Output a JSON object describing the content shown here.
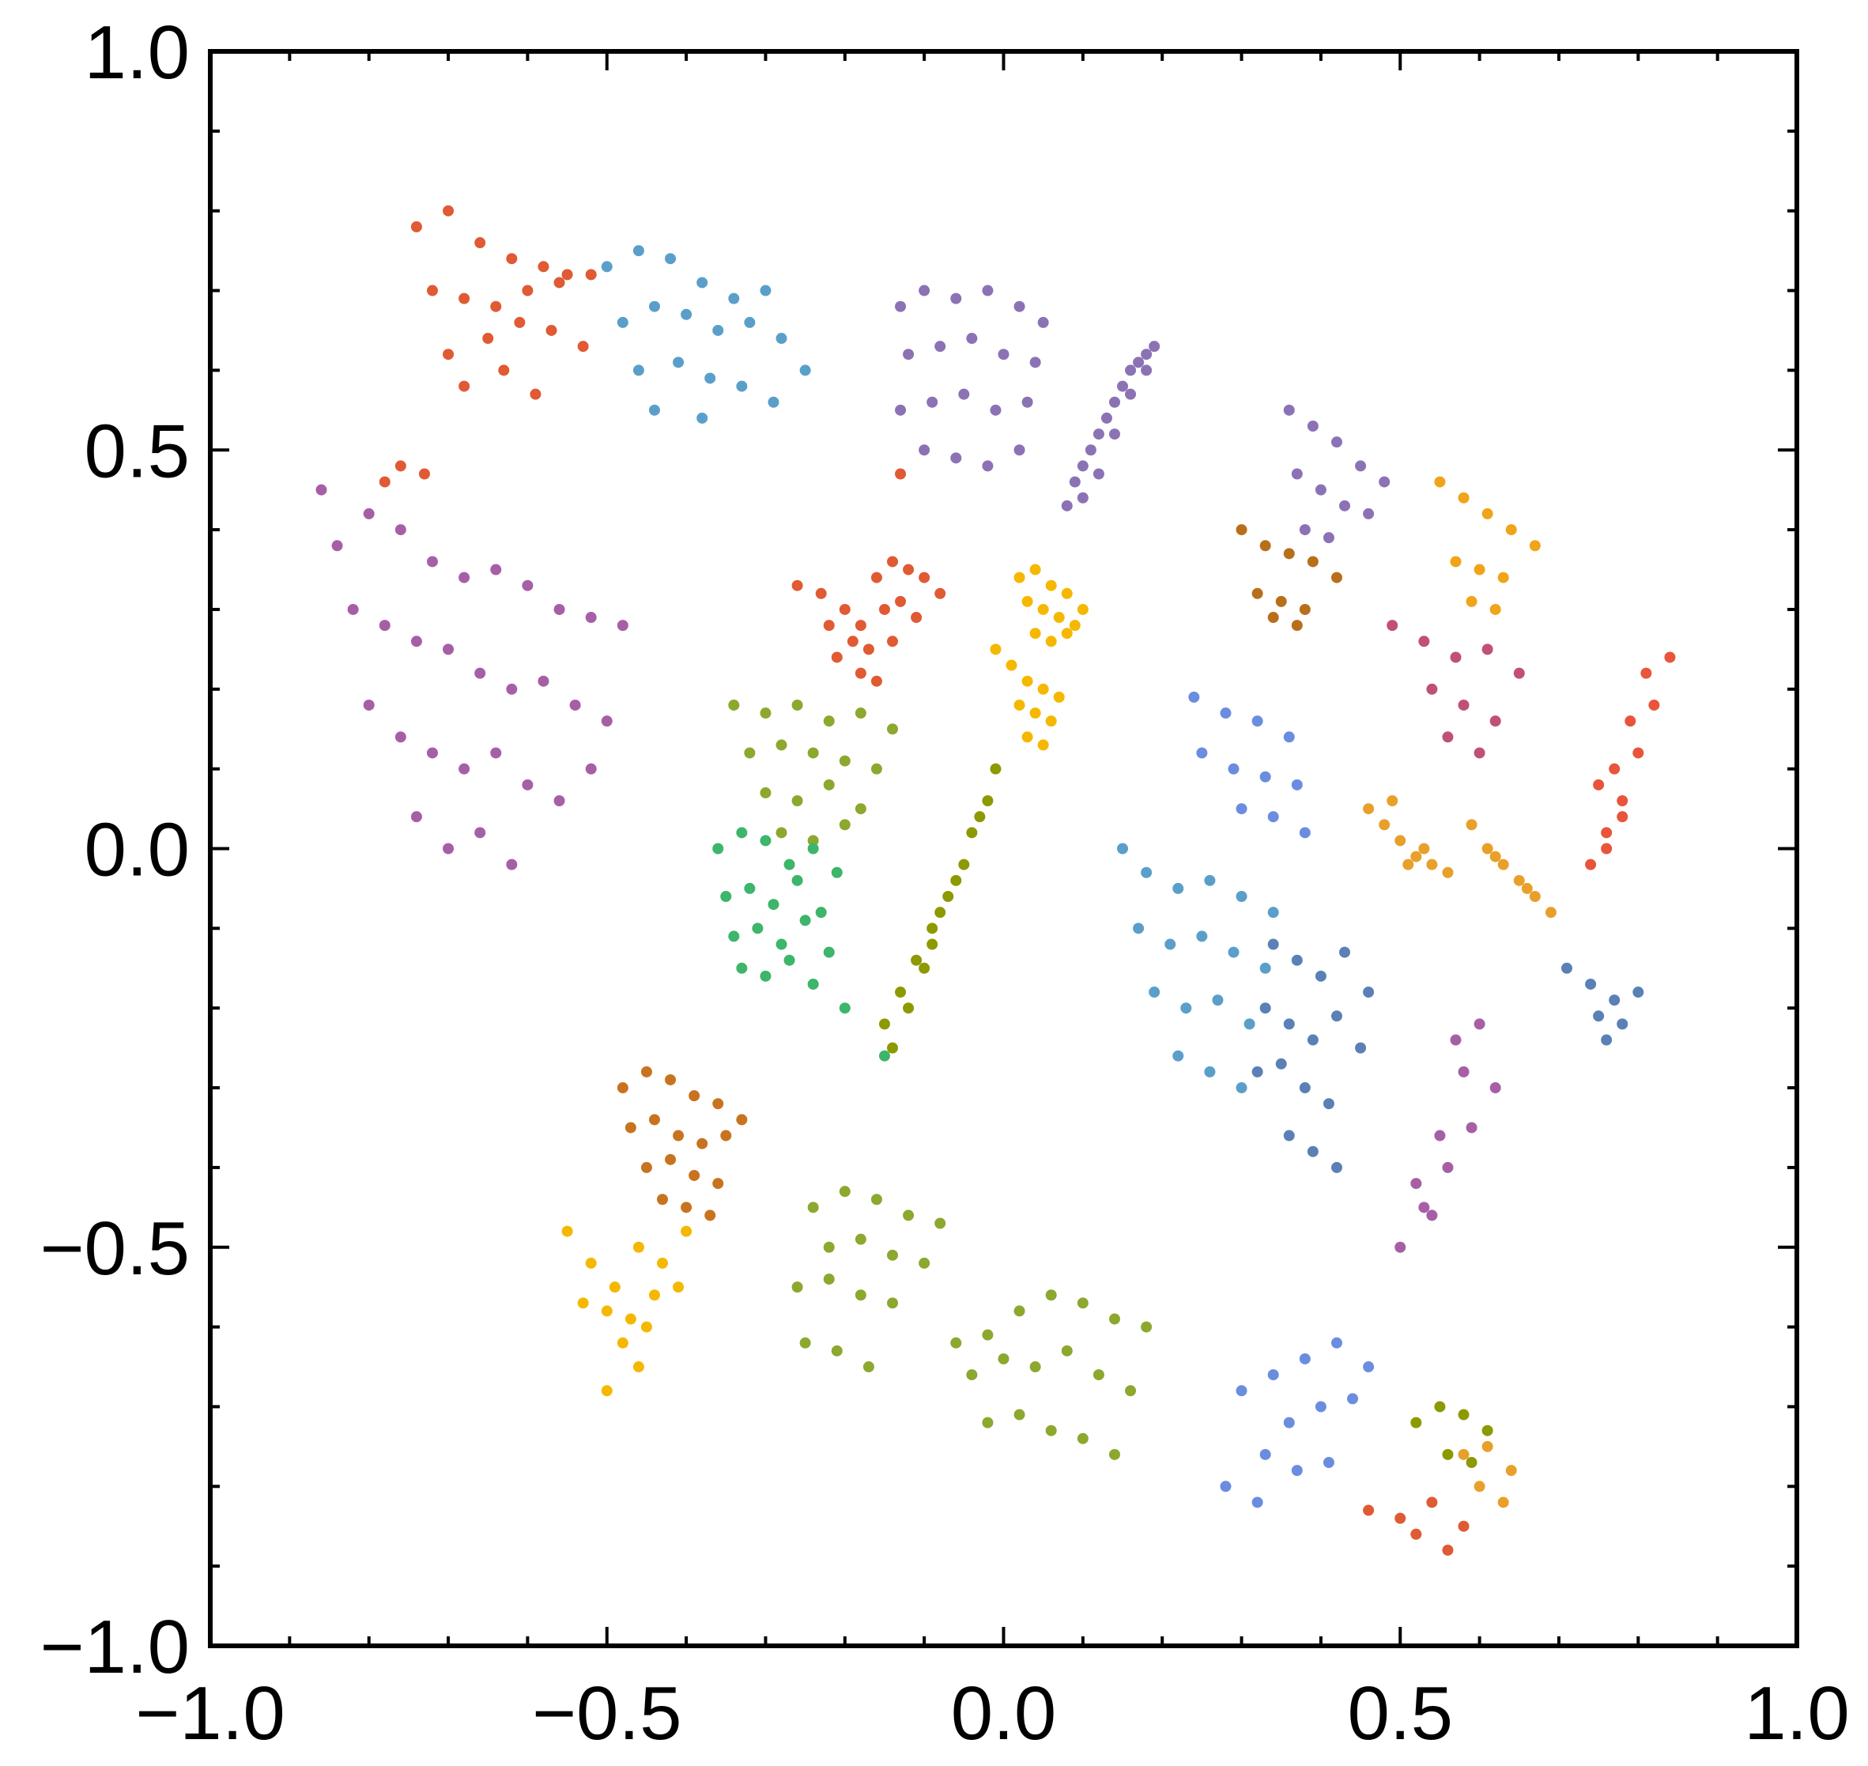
{
  "chart_data": {
    "type": "scatter",
    "title": "",
    "xlabel": "",
    "ylabel": "",
    "xlim": [
      -1.0,
      1.0
    ],
    "ylim": [
      -1.0,
      1.0
    ],
    "grid": false,
    "legend": "none",
    "x_ticks": [
      "-1.0",
      "-0.5",
      "0.0",
      "0.5",
      "1.0"
    ],
    "y_ticks": [
      "-1.0",
      "-0.5",
      "0.0",
      "0.5",
      "1.0"
    ],
    "x_tick_values": [
      -1.0,
      -0.5,
      0.0,
      0.5,
      1.0
    ],
    "y_tick_values": [
      -1.0,
      -0.5,
      0.0,
      0.5,
      1.0
    ],
    "series": [
      {
        "color": "#e05a33",
        "x": [
          -0.74,
          -0.7,
          -0.66,
          -0.62,
          -0.58,
          -0.55,
          -0.72,
          -0.68,
          -0.64,
          -0.6,
          -0.56,
          -0.52,
          -0.7,
          -0.65,
          -0.61,
          -0.57,
          -0.53,
          -0.68,
          -0.63,
          -0.59
        ],
        "y": [
          0.78,
          0.8,
          0.76,
          0.74,
          0.73,
          0.72,
          0.7,
          0.69,
          0.68,
          0.7,
          0.71,
          0.72,
          0.62,
          0.64,
          0.66,
          0.65,
          0.63,
          0.58,
          0.6,
          0.57
        ]
      },
      {
        "color": "#5a9fca",
        "x": [
          -0.5,
          -0.46,
          -0.42,
          -0.38,
          -0.34,
          -0.3,
          -0.48,
          -0.44,
          -0.4,
          -0.36,
          -0.32,
          -0.28,
          -0.25,
          -0.46,
          -0.41,
          -0.37,
          -0.33,
          -0.29,
          -0.44,
          -0.38
        ],
        "y": [
          0.73,
          0.75,
          0.74,
          0.71,
          0.69,
          0.7,
          0.66,
          0.68,
          0.67,
          0.65,
          0.66,
          0.64,
          0.6,
          0.6,
          0.61,
          0.59,
          0.58,
          0.56,
          0.55,
          0.54
        ]
      },
      {
        "color": "#8b72b5",
        "x": [
          -0.13,
          -0.1,
          -0.06,
          -0.02,
          0.02,
          0.05,
          -0.12,
          -0.08,
          -0.04,
          0.0,
          0.04,
          -0.13,
          -0.09,
          -0.05,
          -0.01,
          0.03,
          -0.1,
          -0.06,
          -0.02,
          0.02
        ],
        "y": [
          0.68,
          0.7,
          0.69,
          0.7,
          0.68,
          0.66,
          0.62,
          0.63,
          0.64,
          0.62,
          0.61,
          0.55,
          0.56,
          0.57,
          0.55,
          0.56,
          0.5,
          0.49,
          0.48,
          0.5
        ]
      },
      {
        "color": "#8b72b5",
        "x": [
          0.08,
          0.09,
          0.1,
          0.11,
          0.12,
          0.13,
          0.14,
          0.15,
          0.16,
          0.17,
          0.18,
          0.19,
          0.1,
          0.12,
          0.14,
          0.16,
          0.18
        ],
        "y": [
          0.43,
          0.46,
          0.48,
          0.5,
          0.52,
          0.54,
          0.56,
          0.58,
          0.6,
          0.61,
          0.62,
          0.63,
          0.44,
          0.47,
          0.52,
          0.57,
          0.6
        ]
      },
      {
        "color": "#a65fa6",
        "x": [
          -0.86,
          -0.84,
          -0.8,
          -0.76,
          -0.72,
          -0.68,
          -0.64,
          -0.6,
          -0.56,
          -0.52,
          -0.48,
          -0.82,
          -0.78,
          -0.74,
          -0.7,
          -0.66,
          -0.62,
          -0.58,
          -0.54,
          -0.5,
          -0.8,
          -0.76,
          -0.72,
          -0.68,
          -0.64,
          -0.6,
          -0.56,
          -0.52,
          -0.74,
          -0.7,
          -0.66,
          -0.62
        ],
        "y": [
          0.45,
          0.38,
          0.42,
          0.4,
          0.36,
          0.34,
          0.35,
          0.33,
          0.3,
          0.29,
          0.28,
          0.3,
          0.28,
          0.26,
          0.25,
          0.22,
          0.2,
          0.21,
          0.18,
          0.16,
          0.18,
          0.14,
          0.12,
          0.1,
          0.12,
          0.08,
          0.06,
          0.1,
          0.04,
          0.0,
          0.02,
          -0.02
        ]
      },
      {
        "color": "#e05a33",
        "x": [
          -0.26,
          -0.23,
          -0.2,
          -0.18,
          -0.16,
          -0.14,
          -0.12,
          -0.1,
          -0.08,
          -0.22,
          -0.19,
          -0.17,
          -0.15,
          -0.13,
          -0.11,
          -0.21,
          -0.18,
          -0.16,
          -0.14
        ],
        "y": [
          0.33,
          0.32,
          0.3,
          0.28,
          0.34,
          0.36,
          0.35,
          0.34,
          0.32,
          0.28,
          0.26,
          0.25,
          0.3,
          0.31,
          0.29,
          0.24,
          0.22,
          0.21,
          0.26
        ]
      },
      {
        "color": "#f5b800",
        "x": [
          0.02,
          0.04,
          0.06,
          0.08,
          0.1,
          0.03,
          0.05,
          0.07,
          0.09,
          0.04,
          0.06,
          0.08
        ],
        "y": [
          0.34,
          0.35,
          0.33,
          0.32,
          0.3,
          0.31,
          0.3,
          0.29,
          0.28,
          0.27,
          0.26,
          0.27
        ]
      },
      {
        "color": "#f5b800",
        "x": [
          -0.01,
          0.01,
          0.03,
          0.05,
          0.07,
          0.02,
          0.04,
          0.06,
          0.03,
          0.05
        ],
        "y": [
          0.25,
          0.23,
          0.21,
          0.2,
          0.19,
          0.18,
          0.17,
          0.16,
          0.14,
          0.13
        ]
      },
      {
        "color": "#8ca82e",
        "x": [
          -0.34,
          -0.3,
          -0.26,
          -0.22,
          -0.18,
          -0.14,
          -0.32,
          -0.28,
          -0.24,
          -0.2,
          -0.16,
          -0.3,
          -0.26,
          -0.22,
          -0.18,
          -0.28,
          -0.24,
          -0.2
        ],
        "y": [
          0.18,
          0.17,
          0.18,
          0.16,
          0.17,
          0.15,
          0.12,
          0.13,
          0.12,
          0.11,
          0.1,
          0.07,
          0.06,
          0.08,
          0.05,
          0.02,
          0.01,
          0.03
        ]
      },
      {
        "color": "#3db56a",
        "x": [
          -0.36,
          -0.33,
          -0.3,
          -0.27,
          -0.24,
          -0.21,
          -0.35,
          -0.32,
          -0.29,
          -0.26,
          -0.23,
          -0.34,
          -0.31,
          -0.28,
          -0.25,
          -0.22,
          -0.33,
          -0.3,
          -0.27,
          -0.24,
          -0.2,
          -0.15
        ],
        "y": [
          0.0,
          0.02,
          0.01,
          -0.02,
          0.0,
          -0.03,
          -0.06,
          -0.05,
          -0.07,
          -0.04,
          -0.08,
          -0.11,
          -0.1,
          -0.12,
          -0.09,
          -0.13,
          -0.15,
          -0.16,
          -0.14,
          -0.17,
          -0.2,
          -0.26
        ]
      },
      {
        "color": "#8c9a00",
        "x": [
          -0.15,
          -0.13,
          -0.11,
          -0.09,
          -0.07,
          -0.05,
          -0.03,
          -0.01,
          -0.12,
          -0.1,
          -0.08,
          -0.06,
          -0.04,
          -0.02,
          -0.14,
          -0.09
        ],
        "y": [
          -0.22,
          -0.18,
          -0.14,
          -0.1,
          -0.06,
          -0.02,
          0.04,
          0.1,
          -0.2,
          -0.15,
          -0.08,
          -0.04,
          0.02,
          0.06,
          -0.25,
          -0.12
        ]
      },
      {
        "color": "#e05a33",
        "x": [
          -0.76,
          -0.78,
          -0.73,
          -0.13
        ],
        "y": [
          0.48,
          0.46,
          0.47,
          0.47
        ]
      },
      {
        "color": "#c8731f",
        "x": [
          -0.48,
          -0.45,
          -0.42,
          -0.39,
          -0.36,
          -0.33,
          -0.47,
          -0.44,
          -0.41,
          -0.38,
          -0.35,
          -0.45,
          -0.42,
          -0.39,
          -0.36,
          -0.43,
          -0.4,
          -0.37
        ],
        "y": [
          -0.3,
          -0.28,
          -0.29,
          -0.31,
          -0.32,
          -0.34,
          -0.35,
          -0.34,
          -0.36,
          -0.37,
          -0.36,
          -0.4,
          -0.39,
          -0.41,
          -0.42,
          -0.44,
          -0.45,
          -0.46
        ]
      },
      {
        "color": "#f5b800",
        "x": [
          -0.55,
          -0.52,
          -0.49,
          -0.46,
          -0.43,
          -0.4,
          -0.53,
          -0.5,
          -0.47,
          -0.44,
          -0.41,
          -0.48,
          -0.45,
          -0.46,
          -0.5
        ],
        "y": [
          -0.48,
          -0.52,
          -0.55,
          -0.5,
          -0.52,
          -0.48,
          -0.57,
          -0.58,
          -0.59,
          -0.56,
          -0.55,
          -0.62,
          -0.6,
          -0.65,
          -0.68
        ]
      },
      {
        "color": "#8ca82e",
        "x": [
          -0.24,
          -0.2,
          -0.16,
          -0.12,
          -0.08,
          -0.22,
          -0.18,
          -0.14,
          -0.1,
          -0.26,
          -0.22,
          -0.18,
          -0.14,
          -0.25,
          -0.21,
          -0.17
        ],
        "y": [
          -0.45,
          -0.43,
          -0.44,
          -0.46,
          -0.47,
          -0.5,
          -0.49,
          -0.51,
          -0.52,
          -0.55,
          -0.54,
          -0.56,
          -0.57,
          -0.62,
          -0.63,
          -0.65
        ]
      },
      {
        "color": "#8ca82e",
        "x": [
          -0.06,
          -0.02,
          0.02,
          0.06,
          0.1,
          0.14,
          0.18,
          -0.04,
          0.0,
          0.04,
          0.08,
          0.12,
          0.16,
          -0.02,
          0.02,
          0.06,
          0.1,
          0.14
        ],
        "y": [
          -0.62,
          -0.61,
          -0.58,
          -0.56,
          -0.57,
          -0.59,
          -0.6,
          -0.66,
          -0.64,
          -0.65,
          -0.63,
          -0.66,
          -0.68,
          -0.72,
          -0.71,
          -0.73,
          -0.74,
          -0.76
        ]
      },
      {
        "color": "#5a9fca",
        "x": [
          0.15,
          0.18,
          0.22,
          0.26,
          0.3,
          0.34,
          0.17,
          0.21,
          0.25,
          0.29,
          0.33,
          0.19,
          0.23,
          0.27,
          0.31,
          0.22,
          0.26,
          0.3
        ],
        "y": [
          0.0,
          -0.03,
          -0.05,
          -0.04,
          -0.06,
          -0.08,
          -0.1,
          -0.12,
          -0.11,
          -0.13,
          -0.15,
          -0.18,
          -0.2,
          -0.19,
          -0.22,
          -0.26,
          -0.28,
          -0.3
        ]
      },
      {
        "color": "#5b80b5",
        "x": [
          0.34,
          0.37,
          0.4,
          0.43,
          0.46,
          0.33,
          0.36,
          0.39,
          0.42,
          0.45,
          0.32,
          0.35,
          0.38,
          0.41,
          0.36,
          0.39,
          0.42
        ],
        "y": [
          -0.12,
          -0.14,
          -0.16,
          -0.13,
          -0.18,
          -0.2,
          -0.22,
          -0.24,
          -0.21,
          -0.25,
          -0.28,
          -0.27,
          -0.3,
          -0.32,
          -0.36,
          -0.38,
          -0.4
        ]
      },
      {
        "color": "#6b8de0",
        "x": [
          0.24,
          0.28,
          0.32,
          0.36,
          0.25,
          0.29,
          0.33,
          0.37,
          0.3,
          0.34,
          0.38
        ],
        "y": [
          0.19,
          0.17,
          0.16,
          0.14,
          0.12,
          0.1,
          0.09,
          0.08,
          0.05,
          0.04,
          0.02
        ]
      },
      {
        "color": "#e8a02a",
        "x": [
          0.46,
          0.48,
          0.5,
          0.52,
          0.54,
          0.56,
          0.49,
          0.51,
          0.53
        ],
        "y": [
          0.05,
          0.03,
          0.01,
          -0.01,
          -0.02,
          -0.03,
          0.06,
          -0.02,
          0.0
        ]
      },
      {
        "color": "#e8a02a",
        "x": [
          0.59,
          0.61,
          0.63,
          0.65,
          0.67,
          0.69,
          0.62,
          0.66
        ],
        "y": [
          0.03,
          0.0,
          -0.02,
          -0.04,
          -0.06,
          -0.08,
          -0.01,
          -0.05
        ]
      },
      {
        "color": "#e8553a",
        "x": [
          0.74,
          0.76,
          0.78,
          0.8,
          0.82,
          0.84,
          0.75,
          0.77,
          0.79,
          0.81,
          0.76,
          0.78
        ],
        "y": [
          -0.02,
          0.02,
          0.06,
          0.12,
          0.18,
          0.24,
          0.08,
          0.1,
          0.16,
          0.22,
          0.0,
          0.04
        ]
      },
      {
        "color": "#c0507a",
        "x": [
          0.49,
          0.53,
          0.57,
          0.61,
          0.65,
          0.54,
          0.58,
          0.62,
          0.56,
          0.6
        ],
        "y": [
          0.28,
          0.26,
          0.24,
          0.25,
          0.22,
          0.2,
          0.18,
          0.16,
          0.14,
          0.12
        ]
      },
      {
        "color": "#f0a419",
        "x": [
          0.55,
          0.58,
          0.61,
          0.64,
          0.67,
          0.57,
          0.6,
          0.63,
          0.59,
          0.62
        ],
        "y": [
          0.46,
          0.44,
          0.42,
          0.4,
          0.38,
          0.36,
          0.35,
          0.34,
          0.31,
          0.3
        ]
      },
      {
        "color": "#8b72b5",
        "x": [
          0.36,
          0.39,
          0.42,
          0.45,
          0.48,
          0.37,
          0.4,
          0.43,
          0.46,
          0.38,
          0.41
        ],
        "y": [
          0.55,
          0.53,
          0.51,
          0.48,
          0.46,
          0.47,
          0.45,
          0.43,
          0.42,
          0.4,
          0.39
        ]
      },
      {
        "color": "#b86f1a",
        "x": [
          0.3,
          0.33,
          0.36,
          0.39,
          0.42,
          0.32,
          0.35,
          0.38,
          0.34,
          0.37
        ],
        "y": [
          0.4,
          0.38,
          0.37,
          0.36,
          0.34,
          0.32,
          0.31,
          0.3,
          0.29,
          0.28
        ]
      },
      {
        "color": "#a65fa6",
        "x": [
          0.5,
          0.53,
          0.56,
          0.59,
          0.62,
          0.52,
          0.55,
          0.58,
          0.54,
          0.57,
          0.6
        ],
        "y": [
          -0.5,
          -0.45,
          -0.4,
          -0.35,
          -0.3,
          -0.42,
          -0.36,
          -0.28,
          -0.46,
          -0.24,
          -0.22
        ]
      },
      {
        "color": "#5b80b5",
        "x": [
          0.71,
          0.74,
          0.77,
          0.8,
          0.75,
          0.78,
          0.76
        ],
        "y": [
          -0.15,
          -0.17,
          -0.19,
          -0.18,
          -0.21,
          -0.22,
          -0.24
        ]
      },
      {
        "color": "#6b8de0",
        "x": [
          0.3,
          0.34,
          0.38,
          0.42,
          0.46,
          0.36,
          0.4,
          0.44,
          0.33,
          0.37,
          0.41,
          0.28,
          0.32
        ],
        "y": [
          -0.68,
          -0.66,
          -0.64,
          -0.62,
          -0.65,
          -0.72,
          -0.7,
          -0.69,
          -0.76,
          -0.78,
          -0.77,
          -0.8,
          -0.82
        ]
      },
      {
        "color": "#e05a33",
        "x": [
          0.46,
          0.5,
          0.54,
          0.58,
          0.52,
          0.56
        ],
        "y": [
          -0.83,
          -0.84,
          -0.82,
          -0.85,
          -0.86,
          -0.88
        ]
      },
      {
        "color": "#8c9a00",
        "x": [
          0.52,
          0.55,
          0.58,
          0.61,
          0.56,
          0.59
        ],
        "y": [
          -0.72,
          -0.7,
          -0.71,
          -0.73,
          -0.76,
          -0.77
        ]
      },
      {
        "color": "#e8a02a",
        "x": [
          0.58,
          0.61,
          0.64,
          0.6,
          0.63
        ],
        "y": [
          -0.76,
          -0.75,
          -0.78,
          -0.8,
          -0.82
        ]
      }
    ]
  }
}
